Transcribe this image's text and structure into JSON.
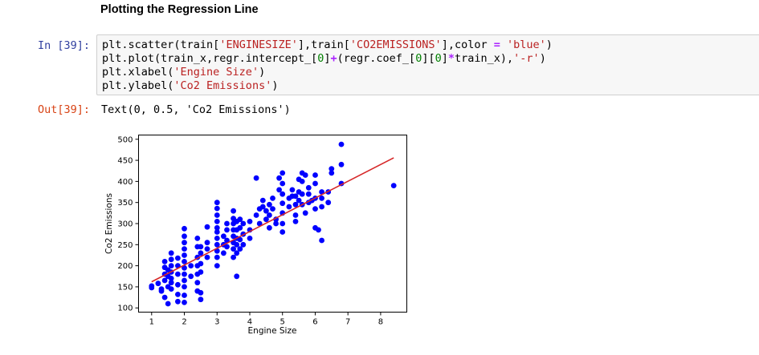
{
  "notebook": {
    "heading": "Plotting the Regression Line",
    "cell": {
      "in_prompt": "In [39]:",
      "out_prompt": "Out[39]:",
      "code": [
        [
          {
            "t": "plt.scatter(train[",
            "c": ""
          },
          {
            "t": "'ENGINESIZE'",
            "c": "str"
          },
          {
            "t": "],train[",
            "c": ""
          },
          {
            "t": "'CO2EMISSIONS'",
            "c": "str"
          },
          {
            "t": "],color ",
            "c": ""
          },
          {
            "t": "=",
            "c": "op"
          },
          {
            "t": " ",
            "c": ""
          },
          {
            "t": "'blue'",
            "c": "str"
          },
          {
            "t": ")",
            "c": ""
          }
        ],
        [
          {
            "t": "plt.plot(train_x,regr.intercept_[",
            "c": ""
          },
          {
            "t": "0",
            "c": "num"
          },
          {
            "t": "]",
            "c": ""
          },
          {
            "t": "+",
            "c": "op"
          },
          {
            "t": "(regr.coef_[",
            "c": ""
          },
          {
            "t": "0",
            "c": "num"
          },
          {
            "t": "][",
            "c": ""
          },
          {
            "t": "0",
            "c": "num"
          },
          {
            "t": "]",
            "c": ""
          },
          {
            "t": "*",
            "c": "op"
          },
          {
            "t": "train_x),",
            "c": ""
          },
          {
            "t": "'-r'",
            "c": "str"
          },
          {
            "t": ")",
            "c": ""
          }
        ],
        [
          {
            "t": "plt.xlabel(",
            "c": ""
          },
          {
            "t": "'Engine Size'",
            "c": "str"
          },
          {
            "t": ")",
            "c": ""
          }
        ],
        [
          {
            "t": "plt.ylabel(",
            "c": ""
          },
          {
            "t": "'Co2 Emissions'",
            "c": "str"
          },
          {
            "t": ")",
            "c": ""
          }
        ]
      ],
      "output_text": "Text(0, 0.5, 'Co2 Emissions')"
    }
  },
  "chart_data": {
    "type": "scatter",
    "xlabel": "Engine Size",
    "ylabel": "Co2 Emissions",
    "xlim": [
      0.6,
      8.8
    ],
    "ylim": [
      90,
      510
    ],
    "xticks": [
      1,
      2,
      3,
      4,
      5,
      6,
      7,
      8
    ],
    "yticks": [
      100,
      150,
      200,
      250,
      300,
      350,
      400,
      450,
      500
    ],
    "grid": false,
    "colors": {
      "points": "#0000ff",
      "line": "#d62728"
    },
    "regression_line": {
      "x": [
        1.0,
        8.4
      ],
      "y": [
        162,
        456
      ]
    },
    "points": [
      [
        1.0,
        148
      ],
      [
        1.0,
        152
      ],
      [
        1.2,
        158
      ],
      [
        1.3,
        145
      ],
      [
        1.3,
        140
      ],
      [
        1.4,
        165
      ],
      [
        1.4,
        180
      ],
      [
        1.4,
        196
      ],
      [
        1.4,
        210
      ],
      [
        1.4,
        125
      ],
      [
        1.5,
        175
      ],
      [
        1.5,
        190
      ],
      [
        1.5,
        150
      ],
      [
        1.5,
        110
      ],
      [
        1.6,
        160
      ],
      [
        1.6,
        170
      ],
      [
        1.6,
        185
      ],
      [
        1.6,
        200
      ],
      [
        1.6,
        215
      ],
      [
        1.6,
        230
      ],
      [
        1.6,
        145
      ],
      [
        1.8,
        155
      ],
      [
        1.8,
        180
      ],
      [
        1.8,
        200
      ],
      [
        1.8,
        218
      ],
      [
        1.8,
        132
      ],
      [
        1.8,
        115
      ],
      [
        2.0,
        150
      ],
      [
        2.0,
        165
      ],
      [
        2.0,
        180
      ],
      [
        2.0,
        195
      ],
      [
        2.0,
        210
      ],
      [
        2.0,
        225
      ],
      [
        2.0,
        240
      ],
      [
        2.0,
        255
      ],
      [
        2.0,
        270
      ],
      [
        2.0,
        288
      ],
      [
        2.0,
        130
      ],
      [
        2.0,
        113
      ],
      [
        2.2,
        175
      ],
      [
        2.2,
        200
      ],
      [
        2.4,
        160
      ],
      [
        2.4,
        180
      ],
      [
        2.4,
        200
      ],
      [
        2.4,
        220
      ],
      [
        2.4,
        245
      ],
      [
        2.4,
        265
      ],
      [
        2.4,
        140
      ],
      [
        2.5,
        185
      ],
      [
        2.5,
        205
      ],
      [
        2.5,
        230
      ],
      [
        2.5,
        245
      ],
      [
        2.5,
        136
      ],
      [
        2.5,
        120
      ],
      [
        2.7,
        220
      ],
      [
        2.7,
        240
      ],
      [
        2.7,
        255
      ],
      [
        2.7,
        292
      ],
      [
        3.0,
        200
      ],
      [
        3.0,
        220
      ],
      [
        3.0,
        235
      ],
      [
        3.0,
        250
      ],
      [
        3.0,
        265
      ],
      [
        3.0,
        280
      ],
      [
        3.0,
        290
      ],
      [
        3.0,
        305
      ],
      [
        3.0,
        320
      ],
      [
        3.0,
        336
      ],
      [
        3.0,
        350
      ],
      [
        3.2,
        230
      ],
      [
        3.2,
        250
      ],
      [
        3.2,
        270
      ],
      [
        3.3,
        245
      ],
      [
        3.3,
        260
      ],
      [
        3.3,
        285
      ],
      [
        3.3,
        300
      ],
      [
        3.5,
        220
      ],
      [
        3.5,
        240
      ],
      [
        3.5,
        255
      ],
      [
        3.5,
        270
      ],
      [
        3.5,
        285
      ],
      [
        3.5,
        300
      ],
      [
        3.5,
        312
      ],
      [
        3.5,
        330
      ],
      [
        3.6,
        230
      ],
      [
        3.6,
        250
      ],
      [
        3.6,
        265
      ],
      [
        3.6,
        285
      ],
      [
        3.6,
        305
      ],
      [
        3.6,
        175
      ],
      [
        3.7,
        240
      ],
      [
        3.7,
        262
      ],
      [
        3.7,
        290
      ],
      [
        3.7,
        310
      ],
      [
        3.8,
        250
      ],
      [
        3.8,
        275
      ],
      [
        3.8,
        300
      ],
      [
        4.0,
        265
      ],
      [
        4.0,
        285
      ],
      [
        4.0,
        305
      ],
      [
        4.2,
        320
      ],
      [
        4.2,
        408
      ],
      [
        4.3,
        300
      ],
      [
        4.3,
        335
      ],
      [
        4.4,
        340
      ],
      [
        4.4,
        355
      ],
      [
        4.5,
        310
      ],
      [
        4.5,
        330
      ],
      [
        4.6,
        290
      ],
      [
        4.6,
        320
      ],
      [
        4.6,
        345
      ],
      [
        4.7,
        335
      ],
      [
        4.7,
        360
      ],
      [
        4.8,
        300
      ],
      [
        4.8,
        310
      ],
      [
        4.9,
        380
      ],
      [
        4.9,
        408
      ],
      [
        5.0,
        280
      ],
      [
        5.0,
        300
      ],
      [
        5.0,
        325
      ],
      [
        5.0,
        348
      ],
      [
        5.0,
        370
      ],
      [
        5.0,
        395
      ],
      [
        5.0,
        420
      ],
      [
        5.2,
        340
      ],
      [
        5.2,
        360
      ],
      [
        5.3,
        365
      ],
      [
        5.3,
        380
      ],
      [
        5.4,
        305
      ],
      [
        5.4,
        320
      ],
      [
        5.4,
        345
      ],
      [
        5.4,
        365
      ],
      [
        5.5,
        355
      ],
      [
        5.5,
        375
      ],
      [
        5.5,
        405
      ],
      [
        5.6,
        345
      ],
      [
        5.6,
        370
      ],
      [
        5.6,
        400
      ],
      [
        5.6,
        420
      ],
      [
        5.7,
        415
      ],
      [
        5.7,
        325
      ],
      [
        5.8,
        350
      ],
      [
        5.8,
        370
      ],
      [
        5.8,
        385
      ],
      [
        5.9,
        355
      ],
      [
        6.0,
        290
      ],
      [
        6.0,
        335
      ],
      [
        6.0,
        360
      ],
      [
        6.0,
        395
      ],
      [
        6.0,
        415
      ],
      [
        6.1,
        285
      ],
      [
        6.2,
        260
      ],
      [
        6.2,
        340
      ],
      [
        6.2,
        360
      ],
      [
        6.2,
        375
      ],
      [
        6.4,
        350
      ],
      [
        6.4,
        375
      ],
      [
        6.5,
        420
      ],
      [
        6.5,
        430
      ],
      [
        6.8,
        395
      ],
      [
        6.8,
        440
      ],
      [
        6.8,
        488
      ],
      [
        8.4,
        390
      ]
    ]
  }
}
